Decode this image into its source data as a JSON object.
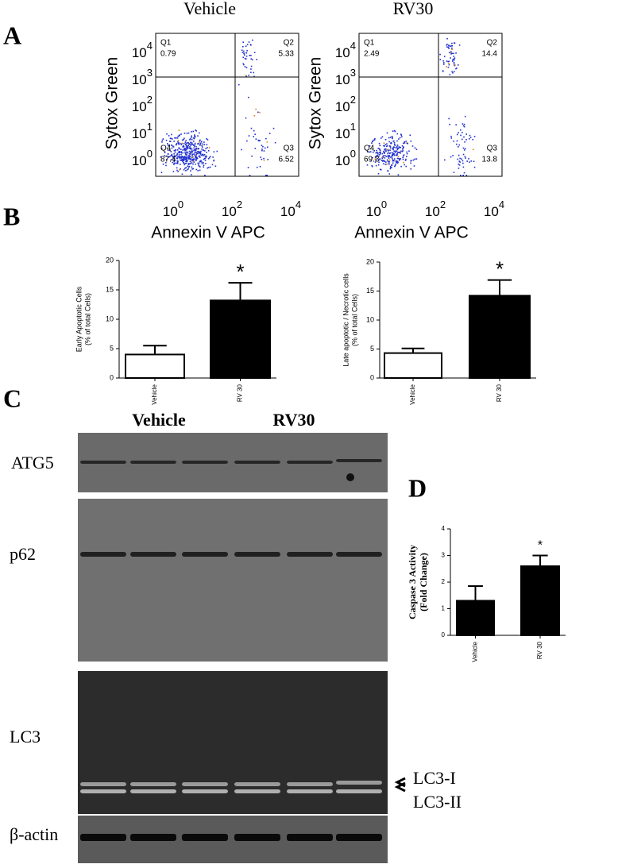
{
  "panels": {
    "a": "A",
    "b": "B",
    "c": "C",
    "d": "D"
  },
  "flow": [
    {
      "title": "Vehicle",
      "x_label": "Annexin V APC",
      "y_label": "Sytox Green",
      "quadrants": [
        {
          "name": "Q1",
          "value": "0.79"
        },
        {
          "name": "Q2",
          "value": "5.33"
        },
        {
          "name": "Q3",
          "value": "6.52"
        },
        {
          "name": "Q4",
          "value": "87.4"
        }
      ],
      "xticks": [
        {
          "base": "10",
          "exp": "0"
        },
        {
          "base": "10",
          "exp": "2"
        },
        {
          "base": "10",
          "exp": "4"
        }
      ],
      "yticks": [
        {
          "base": "10",
          "exp": "0"
        },
        {
          "base": "10",
          "exp": "1"
        },
        {
          "base": "10",
          "exp": "2"
        },
        {
          "base": "10",
          "exp": "3"
        },
        {
          "base": "10",
          "exp": "4"
        }
      ]
    },
    {
      "title": "RV30",
      "x_label": "Annexin V APC",
      "y_label": "Sytox Green",
      "quadrants": [
        {
          "name": "Q1",
          "value": "2.49"
        },
        {
          "name": "Q2",
          "value": "14.4"
        },
        {
          "name": "Q3",
          "value": "13.8"
        },
        {
          "name": "Q4",
          "value": "69.3"
        }
      ],
      "xticks": [
        {
          "base": "10",
          "exp": "0"
        },
        {
          "base": "10",
          "exp": "2"
        },
        {
          "base": "10",
          "exp": "4"
        }
      ],
      "yticks": [
        {
          "base": "10",
          "exp": "0"
        },
        {
          "base": "10",
          "exp": "1"
        },
        {
          "base": "10",
          "exp": "2"
        },
        {
          "base": "10",
          "exp": "3"
        },
        {
          "base": "10",
          "exp": "4"
        }
      ]
    }
  ],
  "chart_data": [
    {
      "type": "bar",
      "y_label": [
        "Early Apoptotic Cells",
        "(% of total Cells)"
      ],
      "categories": [
        "Vehicle",
        "RV 30"
      ],
      "values": [
        4.0,
        13.2
      ],
      "errors": [
        1.5,
        3.0
      ],
      "colors": [
        "#ffffff",
        "#000000"
      ],
      "annotations": [
        null,
        "*"
      ],
      "ylim": [
        0,
        20
      ],
      "yticks": [
        0,
        5,
        10,
        15,
        20
      ]
    },
    {
      "type": "bar",
      "y_label": [
        "Late apoptotic / Necrotic cells",
        "(% of total Cells)"
      ],
      "categories": [
        "Vehicle",
        "RV 30"
      ],
      "values": [
        4.3,
        14.2
      ],
      "errors": [
        0.8,
        2.7
      ],
      "colors": [
        "#ffffff",
        "#000000"
      ],
      "annotations": [
        null,
        "*"
      ],
      "ylim": [
        0,
        20
      ],
      "yticks": [
        0,
        5,
        10,
        15,
        20
      ]
    },
    {
      "type": "bar",
      "y_label": [
        "Caspase 3 Activity",
        "(Fold Change)"
      ],
      "categories": [
        "Vehicle",
        "RV 30"
      ],
      "values": [
        1.3,
        2.6
      ],
      "errors": [
        0.55,
        0.4
      ],
      "colors": [
        "#000000",
        "#000000"
      ],
      "annotations": [
        null,
        "*"
      ],
      "ylim": [
        0,
        4
      ],
      "yticks": [
        0,
        1,
        2,
        3,
        4
      ]
    }
  ],
  "blot": {
    "groups": [
      "Vehicle",
      "RV30"
    ],
    "rows": [
      "ATG5",
      "p62",
      "LC3",
      "β-actin"
    ],
    "bands": [
      "LC3-I",
      "LC3-II"
    ]
  }
}
